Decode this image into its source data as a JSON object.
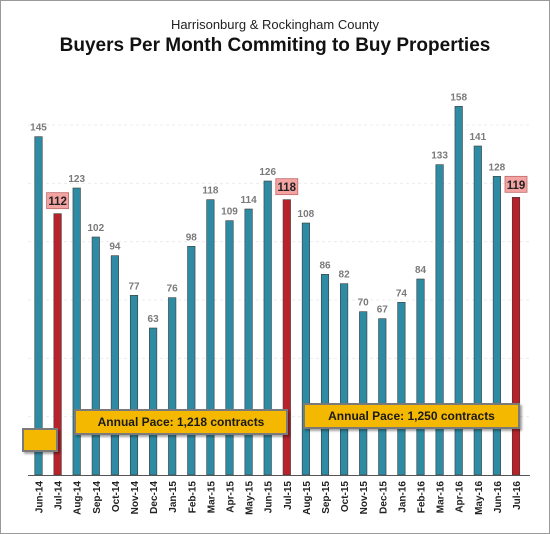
{
  "header": {
    "subtitle": "Harrisonburg & Rockingham County",
    "title": "Buyers Per Month Commiting to Buy Properties"
  },
  "annotations": {
    "pace_1": "Annual Pace: 1,218 contracts",
    "pace_2": "Annual Pace: 1,250 contracts"
  },
  "colors": {
    "teal": "#2e8ba3",
    "red": "#b8232b",
    "highlight_label_bg": "#f4a3a3",
    "pace_box": "#f5b800"
  },
  "chart_data": {
    "type": "bar",
    "title": "Buyers Per Month Commiting to Buy Properties",
    "subtitle": "Harrisonburg & Rockingham County",
    "xlabel": "",
    "ylabel": "",
    "ylim": [
      0,
      165
    ],
    "grid": true,
    "categories": [
      "Jun-14",
      "Jul-14",
      "Aug-14",
      "Sep-14",
      "Oct-14",
      "Nov-14",
      "Dec-14",
      "Jan-15",
      "Feb-15",
      "Mar-15",
      "Apr-15",
      "May-15",
      "Jun-15",
      "Jul-15",
      "Aug-15",
      "Sep-15",
      "Oct-15",
      "Nov-15",
      "Dec-15",
      "Jan-16",
      "Feb-16",
      "Mar-16",
      "Apr-16",
      "May-16",
      "Jun-16",
      "Jul-16"
    ],
    "values": [
      145,
      112,
      123,
      102,
      94,
      77,
      63,
      76,
      98,
      118,
      109,
      114,
      126,
      118,
      108,
      86,
      82,
      70,
      67,
      74,
      84,
      133,
      158,
      141,
      128,
      119
    ],
    "highlighted": [
      "Jul-14",
      "Jul-15",
      "Jul-16"
    ]
  }
}
